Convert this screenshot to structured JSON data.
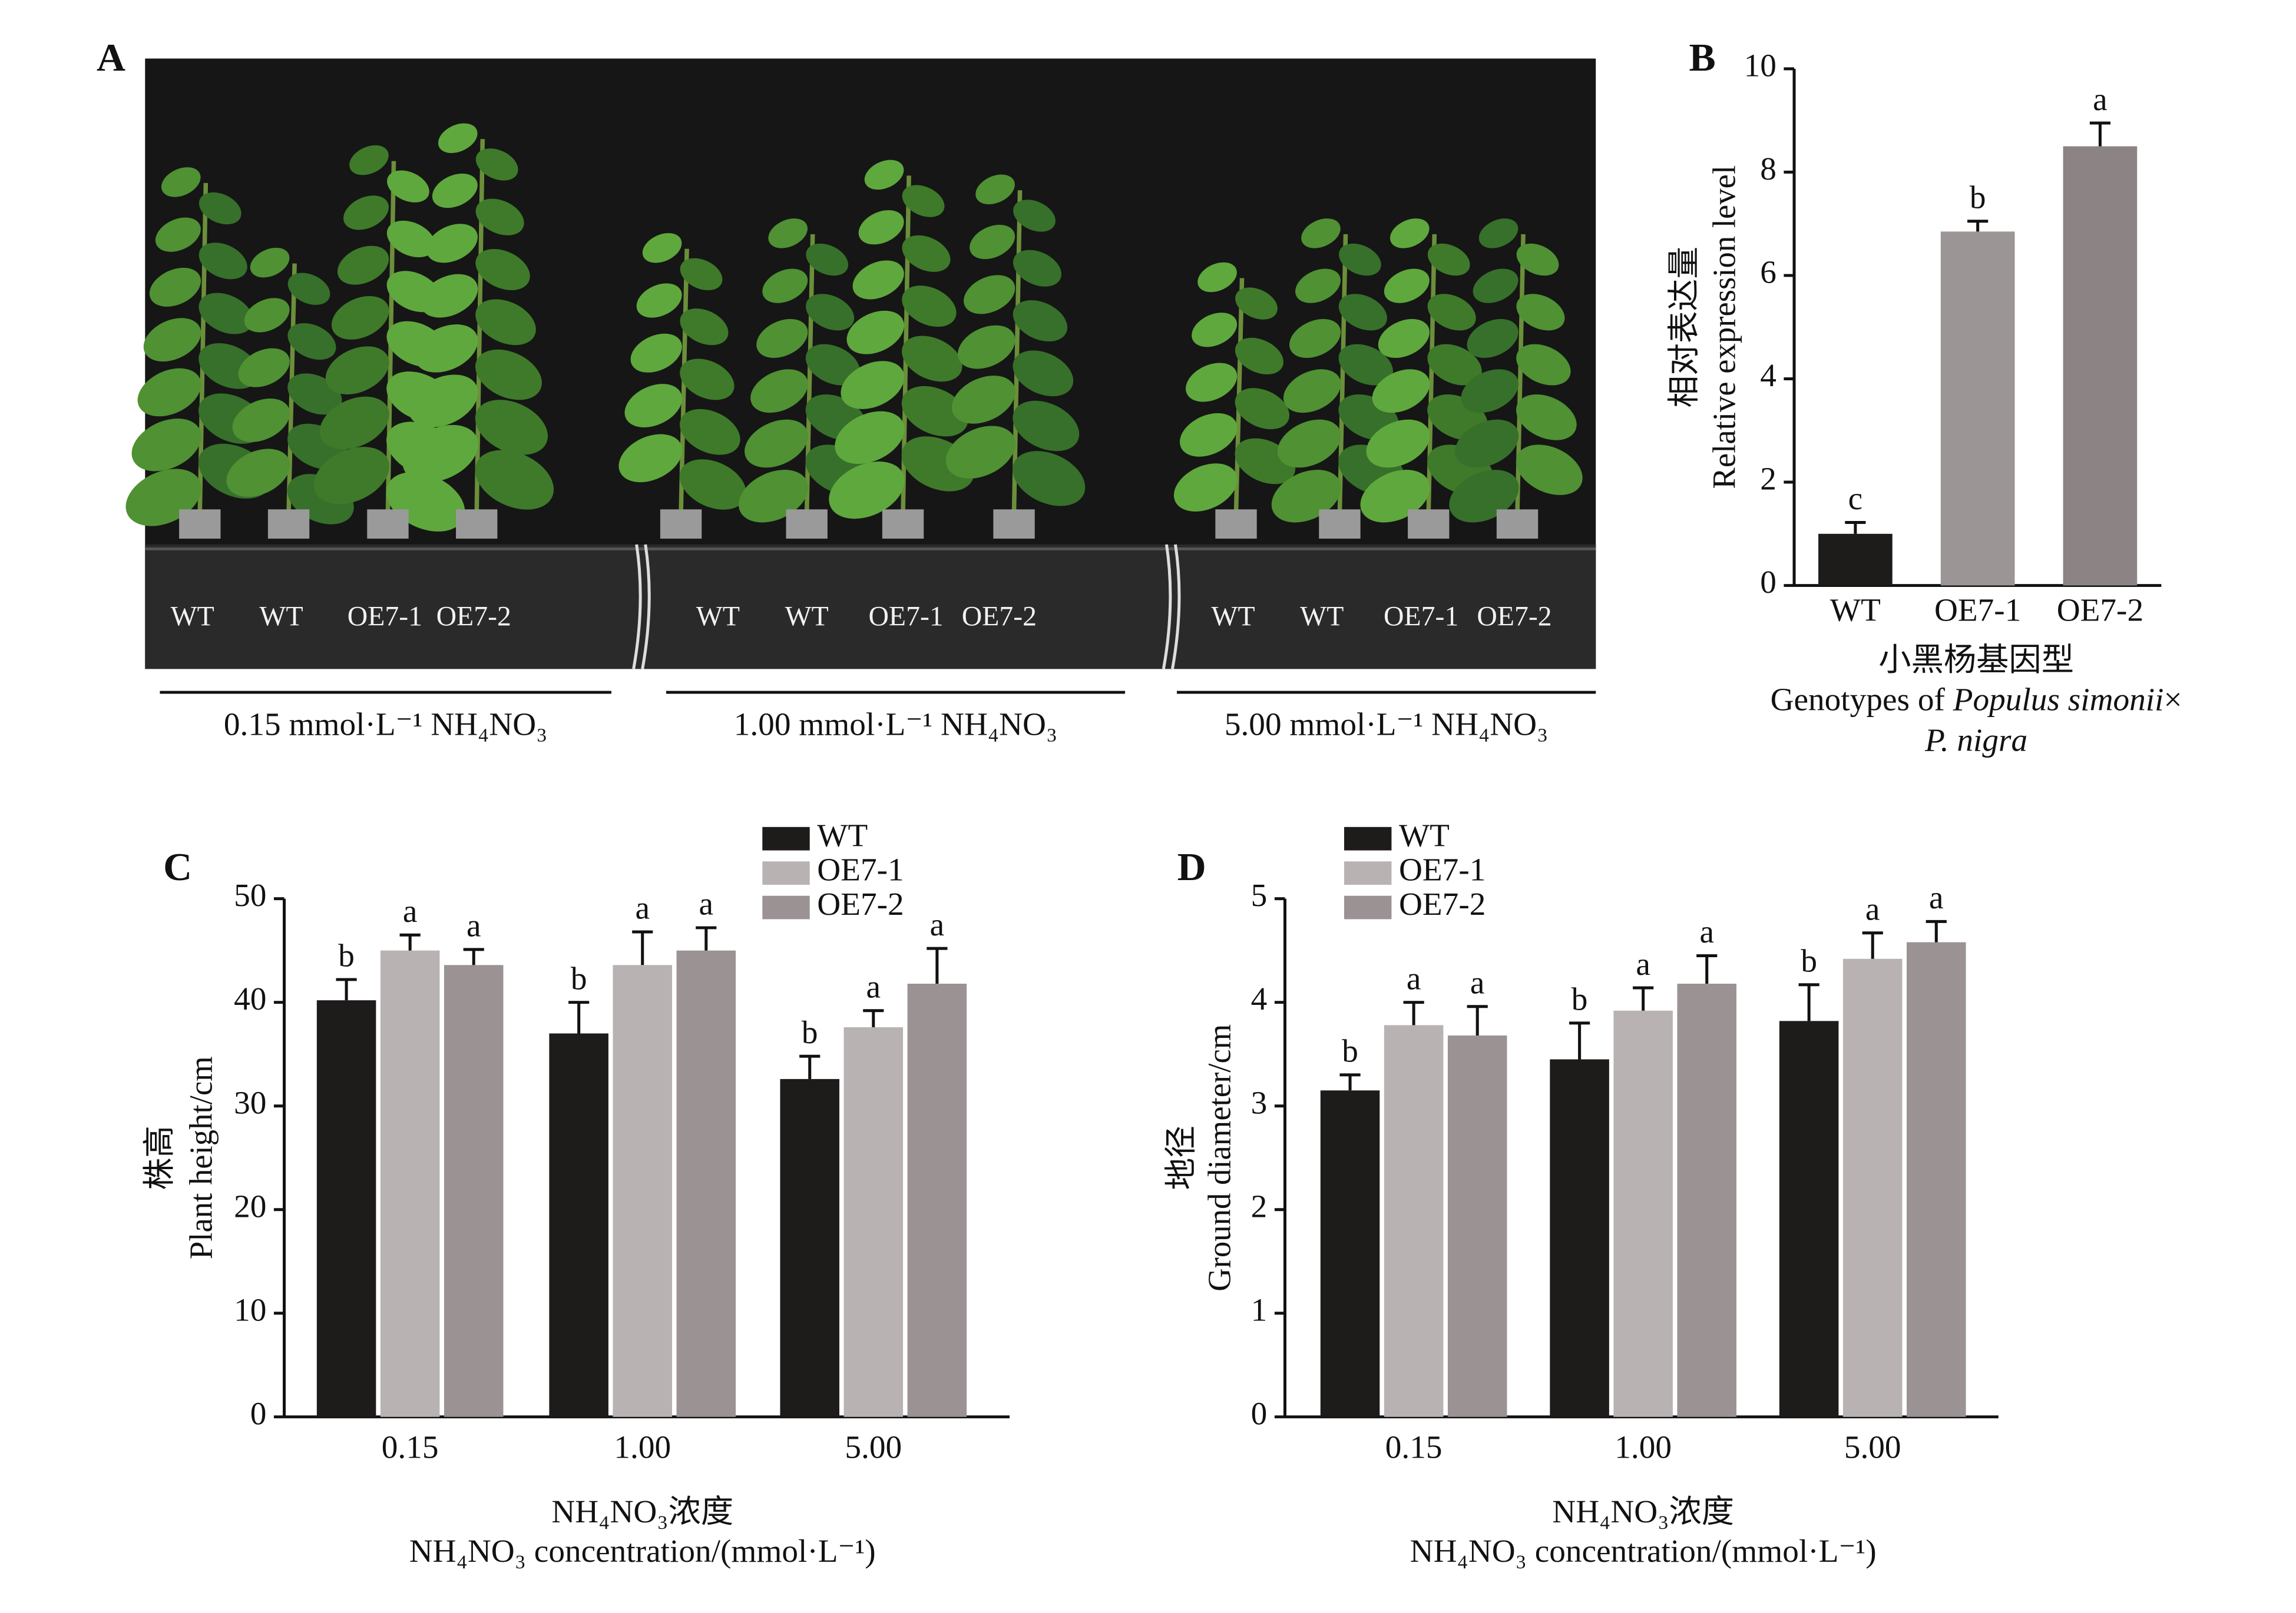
{
  "panel_a": {
    "panel_label": "A",
    "groups": [
      {
        "genotypes": [
          "WT",
          "WT",
          "OE7-1",
          "OE7-2"
        ],
        "treatment": "0.15 mmol·L⁻¹ NH₄NO₃"
      },
      {
        "genotypes": [
          "WT",
          "WT",
          "OE7-1",
          "OE7-2"
        ],
        "treatment": "1.00 mmol·L⁻¹ NH₄NO₃"
      },
      {
        "genotypes": [
          "WT",
          "WT",
          "OE7-1",
          "OE7-2"
        ],
        "treatment": "5.00 mmol·L⁻¹ NH₄NO₃"
      }
    ]
  },
  "chart_data": [
    {
      "type": "bar",
      "panel_label": "B",
      "ylabel": [
        "相对表达量",
        "Relative expression level"
      ],
      "xlabel": [
        "小黑杨基因型",
        [
          "Genotypes of ",
          "Populus simonii",
          "×"
        ],
        "P. nigra"
      ],
      "categories": [
        "WT",
        "OE7-1",
        "OE7-2"
      ],
      "values": [
        1.0,
        6.85,
        8.5
      ],
      "errors": [
        0.22,
        0.2,
        0.45
      ],
      "significance": [
        "c",
        "b",
        "a"
      ],
      "colors": [
        "#1e1b1b",
        "#9b9595",
        "#8c8384"
      ],
      "ylim": [
        0,
        10
      ],
      "yticks": [
        0,
        2,
        4,
        6,
        8,
        10
      ]
    },
    {
      "type": "grouped-bar",
      "panel_label": "C",
      "ylabel": [
        "株高",
        "Plant height/cm"
      ],
      "xlabel": [
        "NH₄NO₃浓度",
        "NH₄NO₃ concentration/(mmol·L⁻¹)"
      ],
      "categories": [
        "0.15",
        "1.00",
        "5.00"
      ],
      "series": [
        {
          "name": "WT",
          "color": "#1e1b1b",
          "values": [
            40.2,
            37.0,
            32.6
          ],
          "errors": [
            2.0,
            3.0,
            2.2
          ],
          "significance": [
            "b",
            "b",
            "b"
          ]
        },
        {
          "name": "OE7-1",
          "color": "#b9b2b3",
          "values": [
            45.0,
            43.6,
            37.6
          ],
          "errors": [
            1.5,
            3.2,
            1.6
          ],
          "significance": [
            "a",
            "a",
            "a"
          ]
        },
        {
          "name": "OE7-2",
          "color": "#9a9293",
          "values": [
            43.6,
            45.0,
            41.8
          ],
          "errors": [
            1.5,
            2.2,
            3.4
          ],
          "significance": [
            "a",
            "a",
            "a"
          ]
        }
      ],
      "ylim": [
        0,
        50
      ],
      "yticks": [
        0,
        10,
        20,
        30,
        40,
        50
      ]
    },
    {
      "type": "grouped-bar",
      "panel_label": "D",
      "ylabel": [
        "地径",
        "Ground diameter/cm"
      ],
      "xlabel": [
        "NH₄NO₃浓度",
        "NH₄NO₃ concentration/(mmol·L⁻¹)"
      ],
      "categories": [
        "0.15",
        "1.00",
        "5.00"
      ],
      "series": [
        {
          "name": "WT",
          "color": "#1e1b1b",
          "values": [
            3.15,
            3.45,
            3.82
          ],
          "errors": [
            0.15,
            0.35,
            0.35
          ],
          "significance": [
            "b",
            "b",
            "b"
          ]
        },
        {
          "name": "OE7-1",
          "color": "#b9b2b3",
          "values": [
            3.78,
            3.92,
            4.42
          ],
          "errors": [
            0.22,
            0.22,
            0.25
          ],
          "significance": [
            "a",
            "a",
            "a"
          ]
        },
        {
          "name": "OE7-2",
          "color": "#9a9293",
          "values": [
            3.68,
            4.18,
            4.58
          ],
          "errors": [
            0.28,
            0.27,
            0.2
          ],
          "significance": [
            "a",
            "a",
            "a"
          ]
        }
      ],
      "ylim": [
        0,
        5
      ],
      "yticks": [
        0,
        1,
        2,
        3,
        4,
        5
      ]
    }
  ]
}
